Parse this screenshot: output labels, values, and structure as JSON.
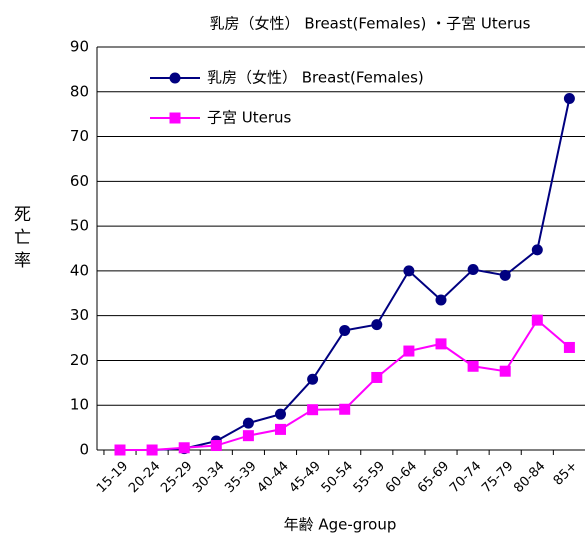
{
  "chart_data": {
    "type": "line",
    "title": "乳房（女性） Breast(Females) ・子宮 Uterus",
    "x_label": "年齢 Age-group",
    "y_label": "死亡率",
    "categories": [
      "15-19",
      "20-24",
      "25-29",
      "30-34",
      "35-39",
      "40-44",
      "45-49",
      "50-54",
      "55-59",
      "60-64",
      "65-69",
      "70-74",
      "75-79",
      "80-84",
      "85+"
    ],
    "series": [
      {
        "name": "乳房（女性） Breast(Females)",
        "color": "#000080",
        "marker": "circle",
        "values": [
          0,
          0,
          0.3,
          2,
          6,
          8,
          15.8,
          26.7,
          28,
          40,
          33.5,
          40.3,
          39,
          44.7,
          78.5
        ]
      },
      {
        "name": "子宮 Uterus",
        "color": "#ff00ff",
        "marker": "square",
        "values": [
          0,
          0,
          0.5,
          1,
          3.2,
          4.6,
          9,
          9.1,
          16.2,
          22.1,
          23.7,
          18.7,
          17.6,
          29,
          22.9
        ]
      }
    ],
    "ylim": [
      0,
      90
    ],
    "yticks": [
      0,
      10,
      20,
      30,
      40,
      50,
      60,
      70,
      80,
      90
    ],
    "grid": true,
    "legend": "top-left"
  }
}
